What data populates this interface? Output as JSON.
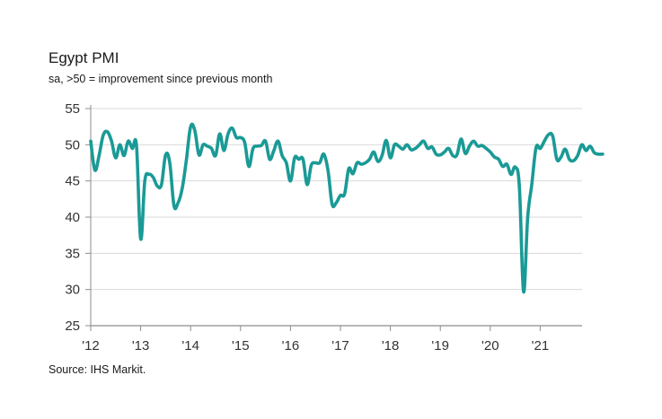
{
  "chart_data": {
    "type": "line",
    "title": "Egypt PMI",
    "subtitle": "sa, >50 = improvement since previous month",
    "source": "Source: IHS Markit.",
    "xlabel": "",
    "ylabel": "",
    "ylim": [
      25,
      55
    ],
    "yticks": [
      55,
      50,
      45,
      40,
      35,
      30,
      25
    ],
    "xticks": [
      "'12",
      "'13",
      "'14",
      "'15",
      "'16",
      "'17",
      "'18",
      "'19",
      "'20",
      "'21"
    ],
    "grid": true,
    "line_color": "#1a9a96",
    "start": "2012-01",
    "series": [
      {
        "name": "Egypt PMI",
        "values": [
          50.5,
          46.5,
          48.5,
          51.3,
          51.8,
          50.5,
          48.2,
          50.0,
          48.5,
          50.5,
          49.5,
          49.8,
          37.0,
          45.0,
          45.9,
          45.5,
          44.3,
          44.5,
          48.6,
          47.5,
          41.6,
          42.0,
          44.0,
          48.0,
          52.5,
          52.0,
          48.6,
          50.0,
          49.8,
          49.5,
          48.5,
          51.5,
          49.2,
          51.5,
          52.3,
          51.0,
          51.0,
          50.3,
          47.0,
          49.5,
          49.8,
          49.9,
          50.5,
          48.0,
          49.2,
          50.5,
          48.5,
          47.5,
          45.0,
          48.2,
          48.0,
          48.0,
          44.5,
          47.2,
          47.5,
          47.5,
          48.7,
          46.5,
          41.8,
          42.0,
          43.0,
          43.2,
          46.7,
          46.0,
          47.5,
          47.3,
          47.5,
          48.0,
          49.0,
          47.7,
          48.5,
          50.6,
          48.2,
          50.0,
          49.8,
          49.4,
          50.0,
          49.3,
          49.5,
          50.0,
          50.5,
          49.5,
          49.7,
          48.7,
          48.6,
          49.0,
          49.5,
          48.5,
          48.6,
          50.8,
          48.8,
          49.8,
          50.5,
          49.8,
          49.9,
          49.5,
          49.0,
          48.3,
          48.0,
          47.0,
          47.3,
          45.9,
          46.9,
          44.2,
          29.7,
          40.0,
          44.6,
          49.6,
          49.5,
          50.5,
          51.4,
          51.2,
          48.0,
          48.3,
          49.4,
          48.0,
          47.8,
          48.5,
          50.0,
          49.2,
          49.8,
          48.9,
          48.7,
          48.7
        ]
      }
    ]
  }
}
